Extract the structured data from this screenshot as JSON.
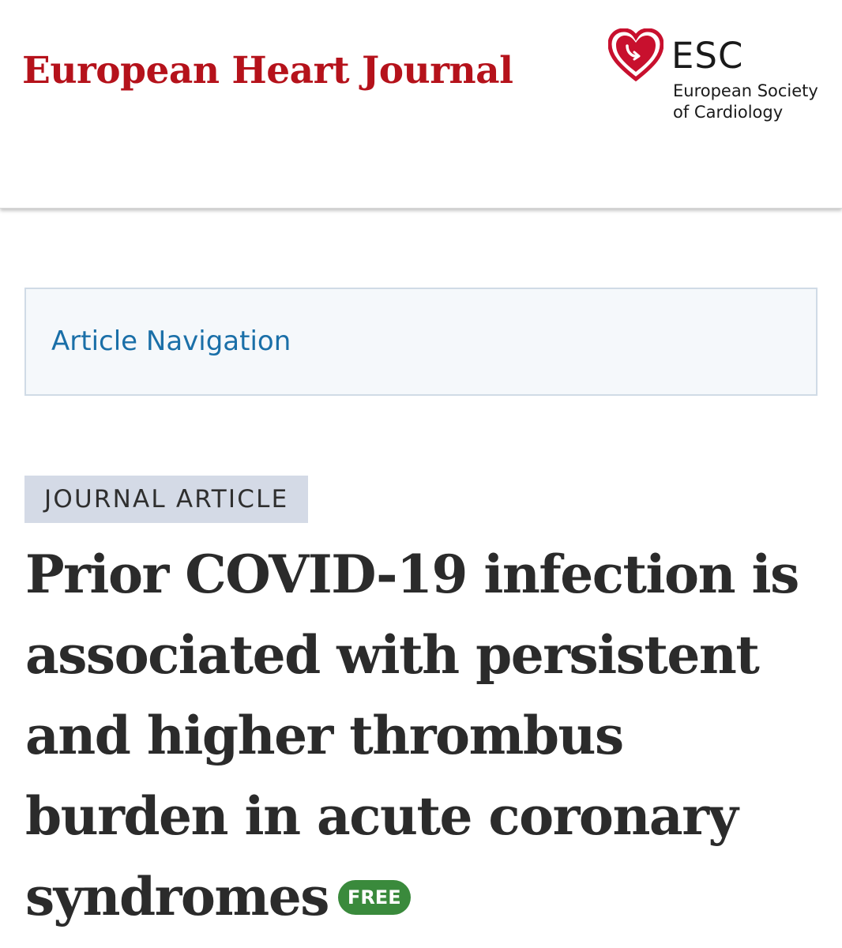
{
  "header": {
    "journal_name": "European Heart Journal",
    "society_abbr": "ESC",
    "society_name_line1": "European Society",
    "society_name_line2": "of Cardiology",
    "brand_color": "#b5121b",
    "logo_icon": "heart-icon"
  },
  "article_nav": {
    "label": "Article Navigation"
  },
  "article": {
    "type_label": "JOURNAL ARTICLE",
    "title": "Prior COVID-19 infection is associated with persistent and higher thrombus burden in acute coronary syndromes",
    "free_badge": "FREE",
    "free_badge_color": "#3a8a3c"
  }
}
